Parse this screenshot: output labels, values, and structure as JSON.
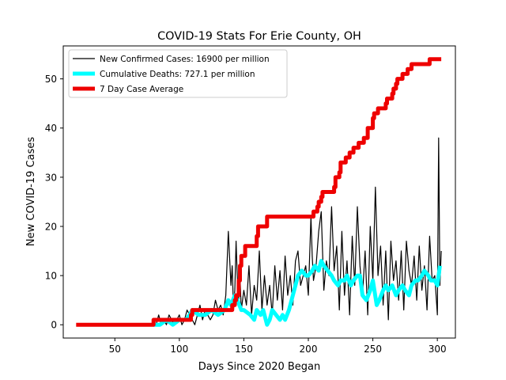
{
  "chart_data": {
    "type": "line",
    "title": "COVID-19 Stats For Erie County, OH",
    "xlabel": "Days Since 2020 Began",
    "ylabel": "New COVID-19 Cases",
    "xlim": [
      10,
      314
    ],
    "ylim": [
      -2.7,
      56.7
    ],
    "xticks": [
      50,
      100,
      150,
      200,
      250,
      300
    ],
    "yticks": [
      0,
      10,
      20,
      30,
      40,
      50
    ],
    "grid": false,
    "legend_position": "top-left",
    "series": [
      {
        "name": "New Confirmed Cases: 16900 per million",
        "color": "#000000",
        "style": "thin-line",
        "x": [
          80,
          82,
          84,
          86,
          88,
          90,
          92,
          94,
          96,
          98,
          100,
          102,
          104,
          106,
          108,
          110,
          112,
          114,
          116,
          118,
          120,
          122,
          124,
          126,
          128,
          130,
          132,
          134,
          136,
          138,
          140,
          141,
          142,
          143,
          144,
          145,
          146,
          147,
          148,
          150,
          152,
          154,
          156,
          158,
          160,
          162,
          164,
          166,
          168,
          170,
          172,
          174,
          176,
          178,
          180,
          182,
          184,
          186,
          188,
          190,
          192,
          194,
          196,
          198,
          200,
          202,
          203,
          204,
          206,
          208,
          210,
          212,
          214,
          216,
          218,
          220,
          222,
          224,
          226,
          228,
          230,
          232,
          234,
          236,
          238,
          240,
          242,
          244,
          246,
          248,
          250,
          252,
          254,
          256,
          258,
          260,
          262,
          264,
          266,
          268,
          270,
          272,
          274,
          276,
          278,
          280,
          282,
          284,
          286,
          288,
          290,
          292,
          294,
          296,
          298,
          300,
          301,
          302,
          303
        ],
        "values": [
          1,
          0,
          2,
          0,
          1,
          0,
          2,
          1,
          0,
          1,
          2,
          0,
          1,
          3,
          2,
          1,
          0,
          2,
          4,
          1,
          3,
          2,
          1,
          2,
          5,
          3,
          4,
          2,
          6,
          19,
          8,
          12,
          3,
          7,
          17,
          9,
          5,
          10,
          3,
          7,
          4,
          12,
          2,
          8,
          5,
          15,
          3,
          10,
          4,
          8,
          2,
          12,
          5,
          11,
          3,
          14,
          6,
          10,
          4,
          13,
          15,
          8,
          10,
          12,
          6,
          22,
          14,
          9,
          12,
          19,
          23,
          7,
          13,
          10,
          24,
          11,
          16,
          3,
          19,
          6,
          13,
          2,
          18,
          8,
          24,
          12,
          6,
          15,
          2,
          20,
          9,
          28,
          10,
          16,
          4,
          15,
          1,
          17,
          9,
          13,
          5,
          15,
          3,
          17,
          11,
          8,
          14,
          5,
          16,
          7,
          12,
          3,
          18,
          9,
          10,
          2,
          38,
          8,
          15
        ]
      },
      {
        "name": "Cumulative Deaths: 727.1 per million",
        "color": "#00ffff",
        "style": "thick-line",
        "x": [
          80,
          85,
          90,
          95,
          100,
          105,
          108,
          110,
          115,
          120,
          125,
          130,
          135,
          138,
          140,
          143,
          145,
          148,
          150,
          155,
          158,
          160,
          163,
          165,
          168,
          170,
          172,
          175,
          178,
          180,
          182,
          185,
          188,
          190,
          192,
          195,
          198,
          200,
          203,
          205,
          208,
          210,
          212,
          215,
          218,
          220,
          223,
          225,
          228,
          230,
          233,
          235,
          238,
          240,
          242,
          245,
          248,
          250,
          253,
          255,
          258,
          260,
          262,
          265,
          268,
          270,
          273,
          275,
          278,
          280,
          283,
          285,
          288,
          290,
          293,
          295,
          298,
          300,
          302
        ],
        "values": [
          0,
          0,
          1,
          0,
          1,
          1,
          2,
          3,
          2,
          2,
          3,
          2,
          3,
          5,
          4,
          6,
          5,
          3,
          3,
          2,
          1,
          3,
          2,
          3,
          0,
          1,
          3,
          2,
          1,
          2,
          1,
          3,
          6,
          8,
          10,
          11,
          10,
          10,
          11,
          12,
          11,
          13,
          12,
          11,
          10,
          9,
          8,
          9,
          9,
          10,
          8,
          9,
          10,
          10,
          6,
          5,
          7,
          9,
          4,
          5,
          7,
          8,
          7,
          8,
          6,
          7,
          8,
          7,
          6,
          8,
          9,
          9,
          10,
          11,
          10,
          9,
          9,
          8,
          12
        ]
      },
      {
        "name": "7 Day Case Average",
        "color": "#ee0000",
        "style": "thick-step",
        "x": [
          20,
          79,
          80,
          81,
          104,
          105,
          109,
          110,
          140,
          141,
          143,
          144,
          145,
          146,
          147,
          148,
          150,
          151,
          155,
          156,
          160,
          161,
          168,
          169,
          203,
          204,
          207,
          208,
          210,
          211,
          216,
          217,
          220,
          221,
          224,
          225,
          228,
          229,
          232,
          233,
          235,
          236,
          238,
          239,
          242,
          243,
          245,
          246,
          250,
          251,
          253,
          254,
          257,
          258,
          260,
          261,
          265,
          266,
          268,
          269,
          270,
          271,
          273,
          274,
          276,
          277,
          279,
          280,
          282,
          283,
          285,
          286,
          293,
          294,
          296,
          297,
          303
        ],
        "values": [
          0,
          0,
          1,
          1,
          1,
          1,
          2,
          3,
          3,
          4,
          5,
          6,
          6,
          9,
          12,
          14,
          14,
          16,
          16,
          16,
          18,
          20,
          22,
          22,
          22,
          23,
          24,
          25,
          26,
          27,
          27,
          27,
          28,
          30,
          31,
          33,
          33,
          34,
          35,
          35,
          36,
          36,
          36,
          37,
          37,
          38,
          38,
          40,
          42,
          43,
          43,
          44,
          44,
          44,
          45,
          46,
          47,
          48,
          49,
          50,
          50,
          50,
          51,
          51,
          51,
          52,
          52,
          53,
          53,
          53,
          53,
          53,
          53,
          54,
          54,
          54,
          54
        ]
      }
    ]
  }
}
